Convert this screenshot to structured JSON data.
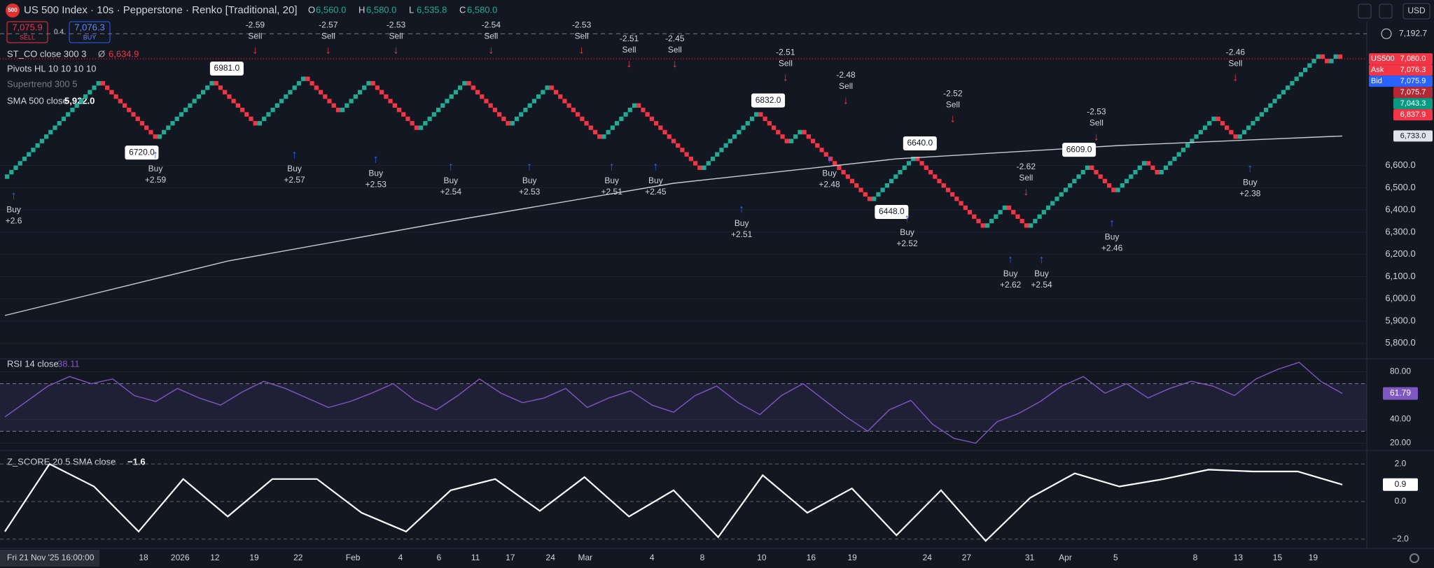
{
  "header": {
    "logo": "500",
    "symbol": "US 500 Index · 10s · Pepperstone · Renko [Traditional, 20]",
    "ohlc": [
      {
        "key": "O",
        "value": "6,560.0"
      },
      {
        "key": "H",
        "value": "6,580.0"
      },
      {
        "key": "L",
        "value": "6,535.8"
      },
      {
        "key": "C",
        "value": "6,580.0"
      }
    ],
    "sell": {
      "price": "7,075.9",
      "label": "SELL"
    },
    "spread": "0.4",
    "buy": {
      "price": "7,076.3",
      "label": "BUY"
    },
    "currency": "USD"
  },
  "legends": {
    "st_co": "ST_CO close 300 3",
    "st_co_symbol": "Ø",
    "st_co_value": "6,634.9",
    "pivots": "Pivots HL 10 10 10 10",
    "supertrend": "Supertrend 300 5",
    "sma_value": "5,922.0",
    "rsi_value": "38.11",
    "z_value": "−1.6"
  },
  "time_axis": {
    "first": "Fri 21 Nov '25  16:00:00",
    "labels": [
      "18",
      "2026",
      "12",
      "19",
      "22",
      "Feb",
      "4",
      "6",
      "11",
      "17",
      "24",
      "Mar",
      "4",
      "8",
      "10",
      "16",
      "19",
      "24",
      "27",
      "31",
      "Apr",
      "5",
      "8",
      "13",
      "15",
      "19"
    ]
  },
  "chart_data": [
    {
      "type": "renko",
      "brick_size": 20,
      "up_color": "#22ab94",
      "down_color": "#f23645",
      "values": [
        6560,
        6980,
        6720,
        6980,
        6780,
        7000,
        6840,
        6980,
        6760,
        6980,
        6780,
        6960,
        6720,
        6880,
        6580,
        6840,
        6700,
        6760,
        6440,
        6640,
        6320,
        6420,
        6320,
        6600,
        6480,
        6620,
        6560,
        6820,
        6720,
        7100,
        7060,
        7100,
        7080
      ],
      "ylim": [
        5730,
        7222
      ],
      "yticks": [
        {
          "value": 5800,
          "label": "5,800.0"
        },
        {
          "value": 5900,
          "label": "5,900.0"
        },
        {
          "value": 6000,
          "label": "6,000.0"
        },
        {
          "value": 6100,
          "label": "6,100.0"
        },
        {
          "value": 6200,
          "label": "6,200.0"
        },
        {
          "value": 6300,
          "label": "6,300.0"
        },
        {
          "value": 6400,
          "label": "6,400.0"
        },
        {
          "value": 6500,
          "label": "6,500.0"
        },
        {
          "value": 6600,
          "label": "6,600.0"
        }
      ],
      "series": [
        {
          "name": "SMA 500 close",
          "color": "#c9ccd4",
          "values": [
            5925,
            6170,
            6350,
            6520,
            6630,
            6690,
            6733
          ]
        }
      ],
      "price_tags": [
        {
          "name": "US500",
          "value": 7080,
          "label": "7,080.0",
          "color": "#f23645"
        },
        {
          "name": "Ask",
          "value": 7076.3,
          "label": "7,076.3",
          "color": "#f23645"
        },
        {
          "name": "Bid",
          "value": 7075.9,
          "label": "7,075.9",
          "color": "#2962ff"
        },
        {
          "value": 7075.7,
          "label": "7,075.7",
          "color": "#b22833"
        },
        {
          "value": 7043.3,
          "label": "7,043.3",
          "color": "#089981"
        },
        {
          "value": 6837.9,
          "label": "6,837.9",
          "color": "#f23645"
        },
        {
          "value": 6733,
          "label": "6,733.0",
          "color": "#e0e3eb"
        }
      ],
      "cursor_tag": {
        "value": 7192.7,
        "label": "7,192.7"
      },
      "pivot_labels": [
        "6981.0",
        "6720.0",
        "6832.0",
        "6640.0",
        "6448.0",
        "6609.0"
      ],
      "buy_signals": {
        "label": "Buy",
        "values": [
          "+2.6",
          "+2.59",
          "+2.57",
          "+2.53",
          "+2.54",
          "+2.53",
          "+2.51",
          "+2.45",
          "+2.51",
          "+2.48",
          "+2.52",
          "+2.62",
          "+2.54",
          "+2.46",
          "+2.38"
        ]
      },
      "sell_signals": {
        "label": "Sell",
        "values": [
          "-2.59",
          "-2.57",
          "-2.53",
          "-2.54",
          "-2.53",
          "-2.51",
          "-2.45",
          "-2.51",
          "-2.48",
          "-2.52",
          "-2.62",
          "-2.53",
          "-2.46"
        ]
      }
    },
    {
      "type": "line",
      "band": [
        30,
        70
      ],
      "ylim": [
        13.8,
        90.9
      ],
      "yticks": [
        {
          "value": 20,
          "label": "20.00"
        },
        {
          "value": 40,
          "label": "40.00"
        },
        {
          "value": 80,
          "label": "80.00"
        }
      ],
      "series": [
        {
          "name": "RSI 14 close",
          "color": "#7e57c2",
          "values": [
            42,
            55,
            68,
            76,
            70,
            74,
            60,
            55,
            66,
            58,
            52,
            63,
            72,
            66,
            58,
            50,
            55,
            62,
            70,
            56,
            48,
            60,
            74,
            62,
            54,
            58,
            66,
            50,
            58,
            64,
            52,
            46,
            60,
            68,
            54,
            44,
            60,
            70,
            56,
            42,
            30,
            48,
            56,
            36,
            24,
            20,
            38,
            45,
            55,
            68,
            76,
            62,
            70,
            58,
            66,
            72,
            68,
            60,
            74,
            82,
            88,
            72,
            61.79
          ]
        }
      ]
    },
    {
      "type": "line",
      "dashed_grid": true,
      "ylim": [
        -2.5,
        2.72
      ],
      "yticks": [
        {
          "value": -2,
          "label": "−2.0"
        },
        {
          "value": 0,
          "label": "0.0"
        },
        {
          "value": 2,
          "label": "2.0"
        }
      ],
      "series": [
        {
          "name": "Z_SCORE 20 5 SMA close",
          "color": "#ffffff",
          "values": [
            -1.6,
            2.0,
            0.8,
            -1.6,
            1.2,
            -0.8,
            1.2,
            1.2,
            -0.6,
            -1.6,
            0.6,
            1.2,
            -0.5,
            1.3,
            -0.8,
            0.6,
            -1.9,
            1.4,
            -0.6,
            0.7,
            -1.8,
            0.6,
            -2.1,
            0.2,
            1.5,
            0.8,
            1.2,
            1.7,
            1.6,
            1.6,
            0.9
          ]
        }
      ]
    }
  ]
}
